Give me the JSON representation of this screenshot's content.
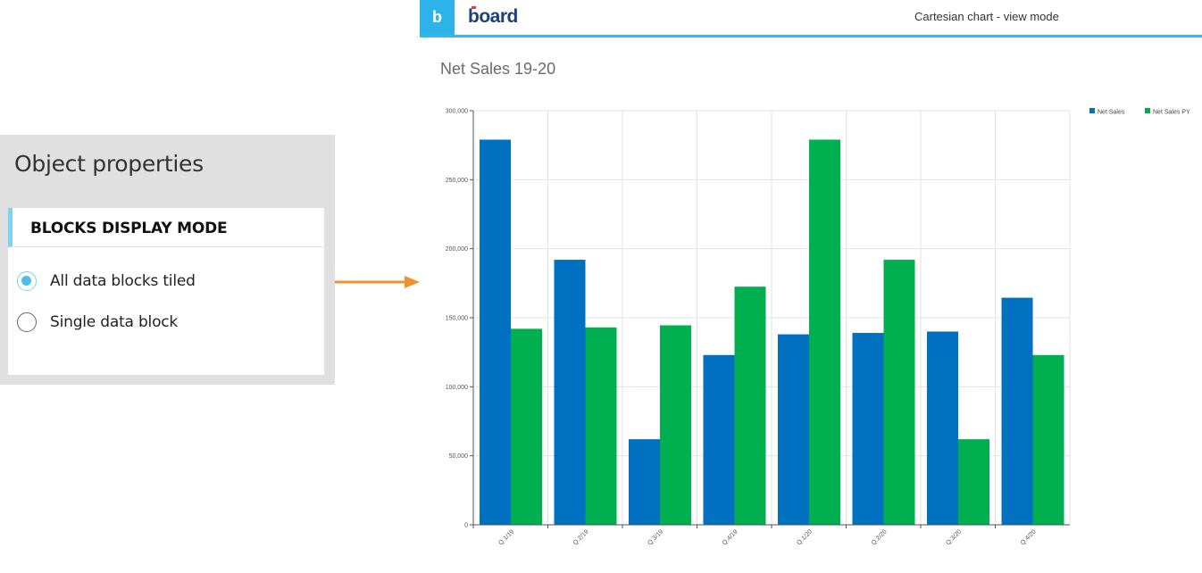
{
  "panel": {
    "title": "Object properties",
    "section": "BLOCKS DISPLAY MODE",
    "options": [
      {
        "label": "All data blocks tiled",
        "checked": true
      },
      {
        "label": "Single data block",
        "checked": false
      }
    ]
  },
  "header": {
    "logo_glyph": "b",
    "brand": "board",
    "mode": "Cartesian chart - view mode"
  },
  "colors": {
    "accent": "#38b6e8",
    "net_sales": "#0070c0",
    "net_sales_py": "#00b050",
    "arrow": "#f0922b"
  },
  "chart_data": {
    "type": "bar",
    "title": "Net Sales 19-20",
    "categories": [
      "Q.1/19",
      "Q.2/19",
      "Q.3/19",
      "Q.4/19",
      "Q.1/20",
      "Q.2/20",
      "Q.3/20",
      "Q.4/20"
    ],
    "series": [
      {
        "name": "Net Sales",
        "values": [
          279000,
          192000,
          62000,
          123000,
          138000,
          139000,
          140000,
          164500
        ]
      },
      {
        "name": "Net Sales PY",
        "values": [
          142000,
          143000,
          144500,
          172500,
          279000,
          192000,
          62000,
          123000
        ]
      }
    ],
    "yticks": [
      "0",
      "50,000",
      "100,000",
      "150,000",
      "200,000",
      "250,000",
      "300,000"
    ],
    "ylim": [
      0,
      300000
    ],
    "grid": true,
    "legend": "top-right"
  }
}
